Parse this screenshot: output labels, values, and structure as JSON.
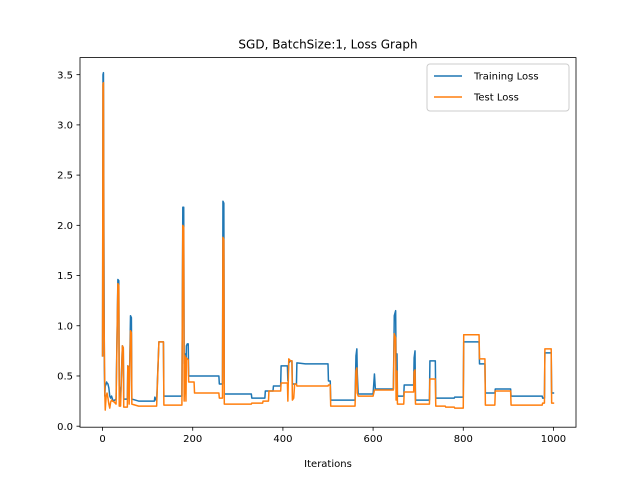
{
  "chart_data": {
    "type": "line",
    "title": "SGD, BatchSize:1, Loss Graph",
    "xlabel": "Iterations",
    "ylabel": "",
    "xlim": [
      -50,
      1050
    ],
    "ylim": [
      -0.01,
      3.67
    ],
    "xticks": [
      0,
      200,
      400,
      600,
      800,
      1000
    ],
    "xtick_labels": [
      "0",
      "200",
      "400",
      "600",
      "800",
      "1000"
    ],
    "yticks": [
      0.0,
      0.5,
      1.0,
      1.5,
      2.0,
      2.5,
      3.0,
      3.5
    ],
    "ytick_labels": [
      "0.0",
      "0.5",
      "1.0",
      "1.5",
      "2.0",
      "2.5",
      "3.0",
      "3.5"
    ],
    "legend_position": "top-right",
    "grid": false,
    "series": [
      {
        "name": "Training Loss",
        "color": "#1f77b4",
        "points": [
          [
            0,
            0.7
          ],
          [
            1,
            3.5
          ],
          [
            2,
            3.52
          ],
          [
            3,
            2.0
          ],
          [
            4,
            0.6
          ],
          [
            5,
            0.3
          ],
          [
            6,
            0.4
          ],
          [
            8,
            0.42
          ],
          [
            9,
            0.44
          ],
          [
            10,
            0.43
          ],
          [
            12,
            0.42
          ],
          [
            14,
            0.38
          ],
          [
            16,
            0.3
          ],
          [
            18,
            0.28
          ],
          [
            20,
            0.3
          ],
          [
            22,
            0.27
          ],
          [
            24,
            0.25
          ],
          [
            30,
            0.27
          ],
          [
            34,
            1.46
          ],
          [
            36,
            1.45
          ],
          [
            37,
            0.4
          ],
          [
            40,
            0.28
          ],
          [
            44,
            0.8
          ],
          [
            46,
            0.78
          ],
          [
            47,
            0.27
          ],
          [
            55,
            0.27
          ],
          [
            56,
            0.6
          ],
          [
            58,
            0.59
          ],
          [
            59,
            0.27
          ],
          [
            62,
            1.1
          ],
          [
            64,
            1.08
          ],
          [
            65,
            0.27
          ],
          [
            80,
            0.25
          ],
          [
            115,
            0.25
          ],
          [
            116,
            0.29
          ],
          [
            120,
            0.25
          ],
          [
            125,
            0.84
          ],
          [
            135,
            0.84
          ],
          [
            136,
            0.3
          ],
          [
            176,
            0.3
          ],
          [
            178,
            2.18
          ],
          [
            180,
            2.18
          ],
          [
            181,
            0.62
          ],
          [
            183,
            0.72
          ],
          [
            185,
            0.6
          ],
          [
            186,
            0.8
          ],
          [
            188,
            0.82
          ],
          [
            190,
            0.82
          ],
          [
            191,
            0.5
          ],
          [
            205,
            0.5
          ],
          [
            258,
            0.5
          ],
          [
            259,
            0.42
          ],
          [
            266,
            0.42
          ],
          [
            267,
            2.24
          ],
          [
            269,
            2.22
          ],
          [
            270,
            0.32
          ],
          [
            300,
            0.32
          ],
          [
            330,
            0.32
          ],
          [
            331,
            0.28
          ],
          [
            360,
            0.28
          ],
          [
            361,
            0.35
          ],
          [
            378,
            0.35
          ],
          [
            379,
            0.4
          ],
          [
            395,
            0.4
          ],
          [
            396,
            0.6
          ],
          [
            410,
            0.6
          ],
          [
            411,
            0.45
          ],
          [
            413,
            0.63
          ],
          [
            417,
            0.65
          ],
          [
            420,
            0.65
          ],
          [
            421,
            0.42
          ],
          [
            430,
            0.42
          ],
          [
            431,
            0.63
          ],
          [
            450,
            0.62
          ],
          [
            500,
            0.62
          ],
          [
            501,
            0.45
          ],
          [
            505,
            0.45
          ],
          [
            506,
            0.26
          ],
          [
            560,
            0.26
          ],
          [
            562,
            0.7
          ],
          [
            564,
            0.77
          ],
          [
            565,
            0.52
          ],
          [
            567,
            0.32
          ],
          [
            600,
            0.32
          ],
          [
            603,
            0.52
          ],
          [
            605,
            0.37
          ],
          [
            645,
            0.37
          ],
          [
            647,
            1.1
          ],
          [
            650,
            1.15
          ],
          [
            651,
            0.65
          ],
          [
            653,
            0.72
          ],
          [
            654,
            0.3
          ],
          [
            660,
            0.3
          ],
          [
            668,
            0.3
          ],
          [
            669,
            0.41
          ],
          [
            690,
            0.41
          ],
          [
            691,
            0.68
          ],
          [
            693,
            0.75
          ],
          [
            694,
            0.26
          ],
          [
            725,
            0.26
          ],
          [
            726,
            0.65
          ],
          [
            738,
            0.65
          ],
          [
            739,
            0.28
          ],
          [
            780,
            0.28
          ],
          [
            781,
            0.29
          ],
          [
            800,
            0.29
          ],
          [
            801,
            0.84
          ],
          [
            835,
            0.84
          ],
          [
            836,
            0.62
          ],
          [
            848,
            0.62
          ],
          [
            849,
            0.33
          ],
          [
            870,
            0.33
          ],
          [
            871,
            0.37
          ],
          [
            905,
            0.37
          ],
          [
            906,
            0.3
          ],
          [
            975,
            0.3
          ],
          [
            976,
            0.28
          ],
          [
            980,
            0.28
          ],
          [
            981,
            0.73
          ],
          [
            995,
            0.73
          ],
          [
            996,
            0.33
          ],
          [
            1000,
            0.33
          ]
        ]
      },
      {
        "name": "Test Loss",
        "color": "#ff7f0e",
        "points": [
          [
            0,
            0.7
          ],
          [
            1,
            3.4
          ],
          [
            2,
            3.42
          ],
          [
            3,
            1.2
          ],
          [
            5,
            0.35
          ],
          [
            6,
            0.16
          ],
          [
            8,
            0.3
          ],
          [
            10,
            0.33
          ],
          [
            12,
            0.28
          ],
          [
            14,
            0.22
          ],
          [
            16,
            0.18
          ],
          [
            18,
            0.24
          ],
          [
            20,
            0.26
          ],
          [
            22,
            0.25
          ],
          [
            26,
            0.24
          ],
          [
            30,
            0.22
          ],
          [
            34,
            1.42
          ],
          [
            36,
            1.4
          ],
          [
            37,
            0.2
          ],
          [
            40,
            0.2
          ],
          [
            44,
            0.8
          ],
          [
            46,
            0.78
          ],
          [
            47,
            0.19
          ],
          [
            55,
            0.19
          ],
          [
            56,
            0.6
          ],
          [
            58,
            0.58
          ],
          [
            59,
            0.22
          ],
          [
            62,
            0.95
          ],
          [
            64,
            0.93
          ],
          [
            65,
            0.22
          ],
          [
            80,
            0.2
          ],
          [
            120,
            0.2
          ],
          [
            125,
            0.84
          ],
          [
            135,
            0.84
          ],
          [
            136,
            0.21
          ],
          [
            176,
            0.21
          ],
          [
            178,
            2.0
          ],
          [
            180,
            1.98
          ],
          [
            181,
            0.25
          ],
          [
            183,
            0.7
          ],
          [
            185,
            0.25
          ],
          [
            186,
            0.68
          ],
          [
            190,
            0.66
          ],
          [
            191,
            0.44
          ],
          [
            203,
            0.44
          ],
          [
            204,
            0.33
          ],
          [
            258,
            0.33
          ],
          [
            259,
            0.28
          ],
          [
            266,
            0.28
          ],
          [
            267,
            1.88
          ],
          [
            269,
            1.86
          ],
          [
            270,
            0.22
          ],
          [
            330,
            0.22
          ],
          [
            331,
            0.23
          ],
          [
            355,
            0.23
          ],
          [
            356,
            0.25
          ],
          [
            368,
            0.25
          ],
          [
            369,
            0.35
          ],
          [
            395,
            0.35
          ],
          [
            396,
            0.43
          ],
          [
            410,
            0.43
          ],
          [
            411,
            0.25
          ],
          [
            413,
            0.67
          ],
          [
            417,
            0.65
          ],
          [
            420,
            0.65
          ],
          [
            421,
            0.26
          ],
          [
            424,
            0.28
          ],
          [
            426,
            0.42
          ],
          [
            430,
            0.42
          ],
          [
            431,
            0.4
          ],
          [
            500,
            0.4
          ],
          [
            501,
            0.41
          ],
          [
            505,
            0.41
          ],
          [
            506,
            0.2
          ],
          [
            560,
            0.2
          ],
          [
            562,
            0.55
          ],
          [
            564,
            0.58
          ],
          [
            565,
            0.33
          ],
          [
            567,
            0.3
          ],
          [
            600,
            0.3
          ],
          [
            603,
            0.36
          ],
          [
            645,
            0.36
          ],
          [
            647,
            0.92
          ],
          [
            650,
            0.88
          ],
          [
            651,
            0.26
          ],
          [
            653,
            0.55
          ],
          [
            654,
            0.22
          ],
          [
            668,
            0.22
          ],
          [
            669,
            0.34
          ],
          [
            690,
            0.34
          ],
          [
            691,
            0.54
          ],
          [
            693,
            0.56
          ],
          [
            694,
            0.22
          ],
          [
            725,
            0.22
          ],
          [
            726,
            0.47
          ],
          [
            738,
            0.47
          ],
          [
            739,
            0.2
          ],
          [
            760,
            0.2
          ],
          [
            761,
            0.19
          ],
          [
            780,
            0.19
          ],
          [
            781,
            0.18
          ],
          [
            800,
            0.18
          ],
          [
            801,
            0.91
          ],
          [
            835,
            0.91
          ],
          [
            836,
            0.67
          ],
          [
            848,
            0.67
          ],
          [
            849,
            0.21
          ],
          [
            870,
            0.21
          ],
          [
            871,
            0.35
          ],
          [
            905,
            0.35
          ],
          [
            906,
            0.21
          ],
          [
            975,
            0.21
          ],
          [
            976,
            0.23
          ],
          [
            980,
            0.23
          ],
          [
            981,
            0.77
          ],
          [
            995,
            0.77
          ],
          [
            996,
            0.23
          ],
          [
            1000,
            0.23
          ]
        ]
      }
    ]
  }
}
